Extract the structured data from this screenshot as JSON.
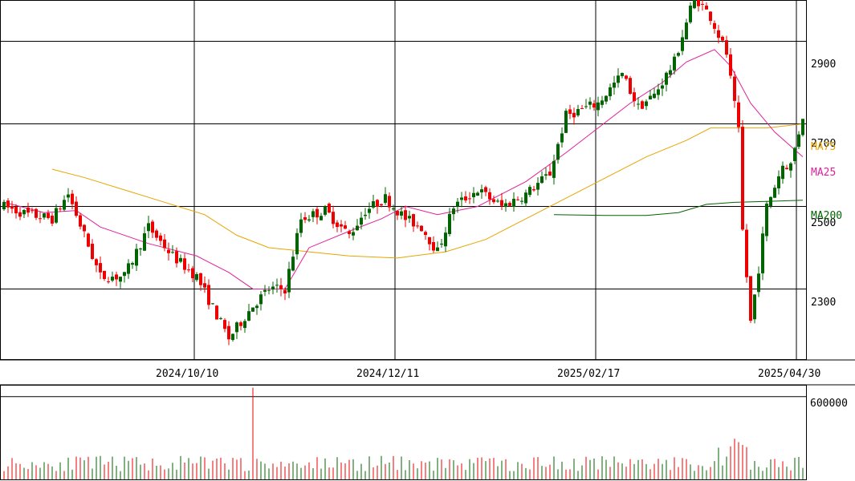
{
  "chart_data": {
    "type": "candlestick",
    "price_ticks": [
      2300,
      2500,
      2700,
      2900
    ],
    "price_range": [
      2130,
      3000
    ],
    "volume_ticks": [
      600000
    ],
    "volume_range": [
      0,
      680000
    ],
    "date_labels": [
      "2024/10/10",
      "2024/12/11",
      "2025/02/17",
      "2025/04/30"
    ],
    "date_label_index": [
      48,
      98,
      148,
      198
    ],
    "series": [
      {
        "name": "MA75",
        "color": "#e6a600"
      },
      {
        "name": "MA25",
        "color": "#e0209a"
      },
      {
        "name": "MA200",
        "color": "#006400"
      }
    ],
    "up_color": "#006400",
    "down_color": "#ee0000",
    "grid": true,
    "candle_count": 200,
    "anchors": [
      [
        0,
        2500
      ],
      [
        6,
        2480
      ],
      [
        12,
        2470
      ],
      [
        16,
        2530
      ],
      [
        24,
        2330
      ],
      [
        30,
        2330
      ],
      [
        36,
        2450
      ],
      [
        42,
        2380
      ],
      [
        48,
        2330
      ],
      [
        56,
        2180
      ],
      [
        62,
        2260
      ],
      [
        66,
        2300
      ],
      [
        70,
        2300
      ],
      [
        74,
        2470
      ],
      [
        80,
        2490
      ],
      [
        86,
        2430
      ],
      [
        90,
        2490
      ],
      [
        95,
        2520
      ],
      [
        100,
        2470
      ],
      [
        104,
        2450
      ],
      [
        108,
        2390
      ],
      [
        112,
        2500
      ],
      [
        118,
        2540
      ],
      [
        124,
        2500
      ],
      [
        130,
        2530
      ],
      [
        136,
        2580
      ],
      [
        140,
        2720
      ],
      [
        148,
        2750
      ],
      [
        154,
        2820
      ],
      [
        158,
        2740
      ],
      [
        162,
        2770
      ],
      [
        167,
        2850
      ],
      [
        172,
        3010
      ],
      [
        176,
        2960
      ],
      [
        180,
        2870
      ],
      [
        183,
        2680
      ],
      [
        184,
        2440
      ],
      [
        186,
        2220
      ],
      [
        188,
        2350
      ],
      [
        190,
        2500
      ],
      [
        194,
        2600
      ],
      [
        196,
        2600
      ],
      [
        199,
        2720
      ]
    ],
    "ma25": [
      [
        0,
        2510
      ],
      [
        10,
        2485
      ],
      [
        18,
        2490
      ],
      [
        24,
        2450
      ],
      [
        36,
        2410
      ],
      [
        48,
        2380
      ],
      [
        56,
        2340
      ],
      [
        62,
        2300
      ],
      [
        70,
        2300
      ],
      [
        76,
        2400
      ],
      [
        86,
        2440
      ],
      [
        94,
        2470
      ],
      [
        100,
        2500
      ],
      [
        108,
        2480
      ],
      [
        118,
        2500
      ],
      [
        130,
        2560
      ],
      [
        140,
        2630
      ],
      [
        148,
        2690
      ],
      [
        156,
        2750
      ],
      [
        164,
        2800
      ],
      [
        170,
        2850
      ],
      [
        177,
        2880
      ],
      [
        181,
        2840
      ],
      [
        186,
        2750
      ],
      [
        192,
        2680
      ],
      [
        199,
        2620
      ]
    ],
    "ma75": [
      [
        12,
        2590
      ],
      [
        20,
        2570
      ],
      [
        30,
        2540
      ],
      [
        40,
        2510
      ],
      [
        50,
        2480
      ],
      [
        58,
        2430
      ],
      [
        66,
        2400
      ],
      [
        76,
        2390
      ],
      [
        86,
        2380
      ],
      [
        98,
        2375
      ],
      [
        110,
        2390
      ],
      [
        120,
        2420
      ],
      [
        130,
        2470
      ],
      [
        140,
        2520
      ],
      [
        150,
        2570
      ],
      [
        160,
        2620
      ],
      [
        170,
        2660
      ],
      [
        176,
        2690
      ],
      [
        182,
        2690
      ],
      [
        190,
        2690
      ],
      [
        199,
        2700
      ]
    ],
    "ma200": [
      [
        137,
        2480
      ],
      [
        150,
        2478
      ],
      [
        160,
        2478
      ],
      [
        168,
        2485
      ],
      [
        175,
        2505
      ],
      [
        182,
        2510
      ],
      [
        190,
        2512
      ],
      [
        199,
        2515
      ]
    ],
    "volume_spikes": [
      [
        62,
        665000
      ],
      [
        182,
        295000
      ],
      [
        183,
        270000
      ],
      [
        181,
        240000
      ],
      [
        184,
        250000
      ],
      [
        185,
        235000
      ],
      [
        178,
        230000
      ]
    ]
  },
  "labels": {
    "ma75": "MA75",
    "ma25": "MA25",
    "ma200": "MA200",
    "price_tick_2300": "2300",
    "price_tick_2500": "2500",
    "price_tick_2700": "2700",
    "price_tick_2900": "2900",
    "volume_tick": "600000",
    "date_1": "2024/10/10",
    "date_2": "2024/12/11",
    "date_3": "2025/02/17",
    "date_4": "2025/04/30"
  }
}
